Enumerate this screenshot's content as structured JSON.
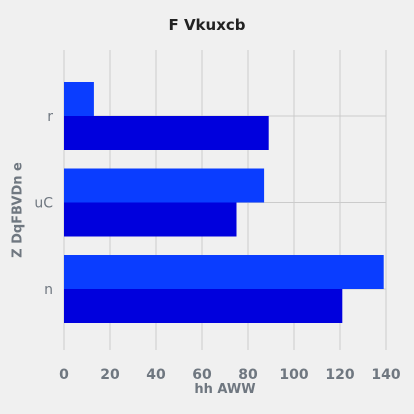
{
  "chart_data": {
    "type": "bar",
    "orientation": "horizontal",
    "title": "F Vkuxcb",
    "xlabel": "hh AWW",
    "ylabel": "Z  DqFBVDn  e",
    "categories": [
      "r",
      "uC",
      "n"
    ],
    "series": [
      {
        "name": "",
        "color": "#0a3dff",
        "values": [
          13,
          87,
          139
        ]
      },
      {
        "name": "",
        "color": "#0000dd",
        "values": [
          89,
          75,
          121
        ]
      }
    ],
    "xlim": [
      0,
      140
    ],
    "xticks": [
      "0",
      "20",
      "40",
      "60",
      "80",
      "100",
      "120",
      "140"
    ],
    "xtick_values": [
      0,
      20,
      40,
      60,
      80,
      100,
      120,
      140
    ],
    "grid": true,
    "background": "#f0f0f0",
    "grid_color": "#cbcbcb",
    "tick_color": "#6f7780"
  }
}
